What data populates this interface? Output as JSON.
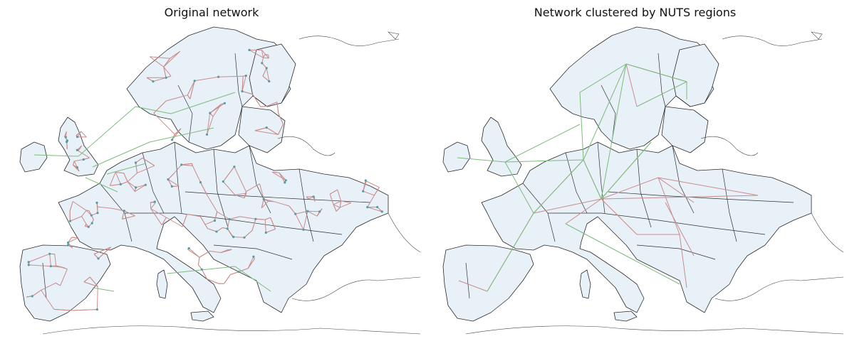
{
  "panels": [
    {
      "title": "Original network"
    },
    {
      "title": "Network clustered by NUTS regions"
    }
  ],
  "legend_colors": {
    "land": "#e8f0f8",
    "ac_lines": "#c98d8d",
    "dc_links": "#7dbb7d",
    "buses": "#5a9aa0"
  }
}
